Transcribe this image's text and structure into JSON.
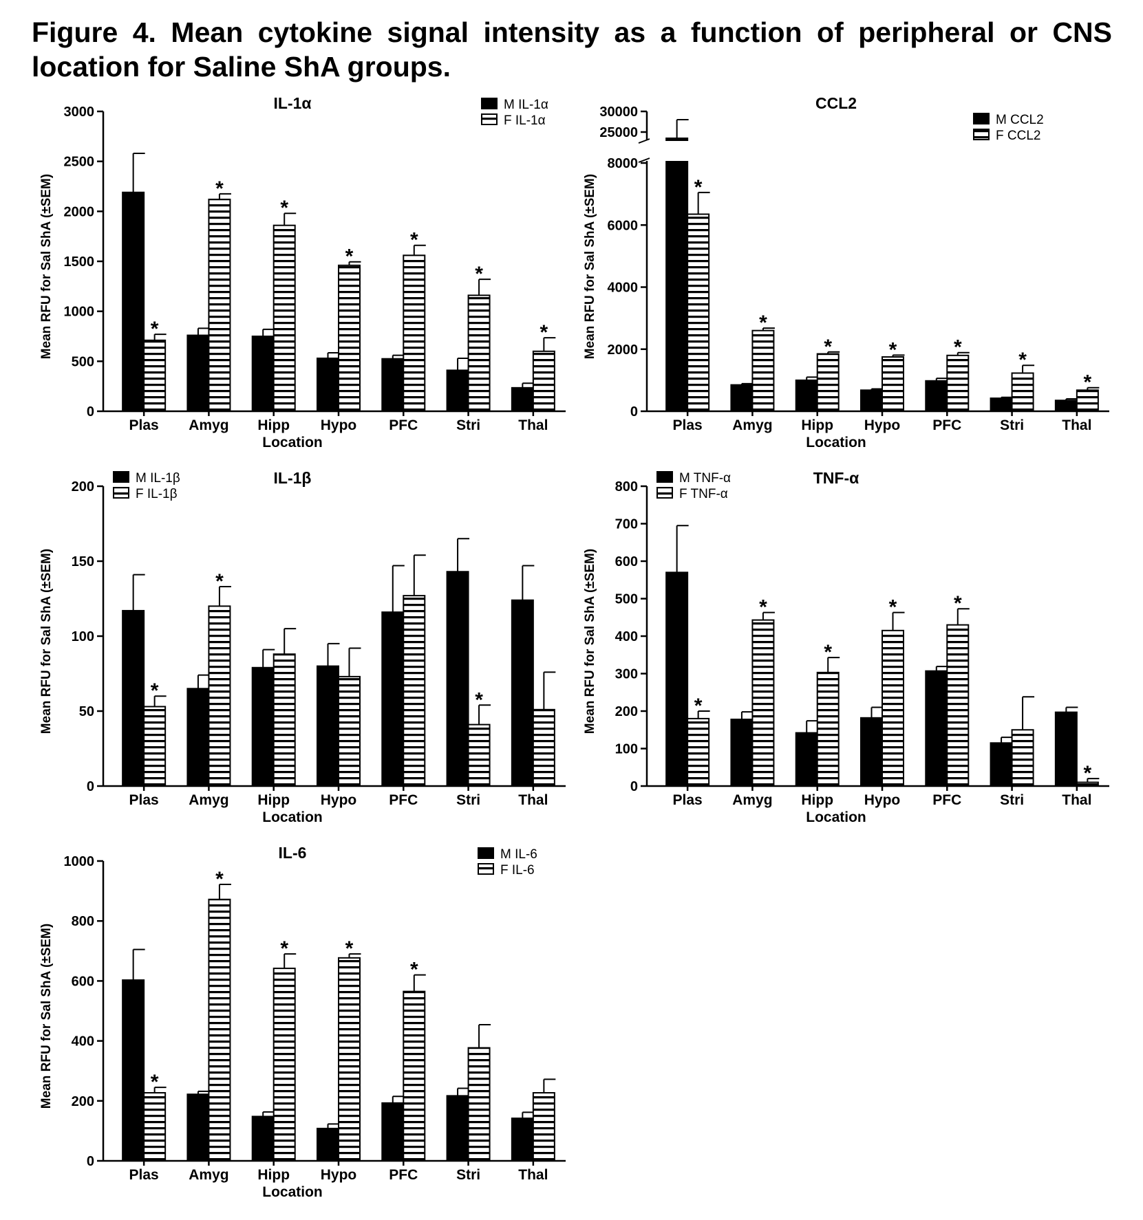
{
  "figure_title_line1": "Figure 4. Mean cytokine signal intensity as a function of peripheral or CNS",
  "figure_title_line2": "location for Saline ShA groups.",
  "chart_data": [
    {
      "type": "bar",
      "title": "IL-1α",
      "xlabel": "Location",
      "ylabel": "Mean RFU for Sal ShA (±SEM)",
      "ylim": [
        0,
        3000
      ],
      "yticks": [
        0,
        500,
        1000,
        1500,
        2000,
        2500,
        3000
      ],
      "categories": [
        "Plas",
        "Amyg",
        "Hipp",
        "Hypo",
        "PFC",
        "Stri",
        "Thal"
      ],
      "legend_position": "top-right",
      "series": [
        {
          "name": "M IL-1α",
          "fill": "solid",
          "values": [
            2190,
            760,
            750,
            530,
            525,
            410,
            235
          ],
          "sem": [
            390,
            70,
            70,
            55,
            35,
            120,
            45
          ]
        },
        {
          "name": "F IL-1α",
          "fill": "striped",
          "values": [
            710,
            2120,
            1860,
            1460,
            1560,
            1160,
            600
          ],
          "sem": [
            60,
            55,
            120,
            35,
            100,
            160,
            135
          ]
        }
      ],
      "significant": [
        [],
        [
          0,
          1,
          2,
          3,
          4,
          5,
          6
        ]
      ]
    },
    {
      "type": "bar",
      "title": "CCL2",
      "xlabel": "Location",
      "ylabel": "Mean RFU for Sal ShA (±SEM)",
      "ylim": [
        0,
        30000
      ],
      "yticks": [
        0,
        2000,
        4000,
        6000,
        8000,
        25000,
        30000
      ],
      "axis_break": [
        8000,
        25000
      ],
      "categories": [
        "Plas",
        "Amyg",
        "Hipp",
        "Hypo",
        "PFC",
        "Stri",
        "Thal"
      ],
      "legend_position": "top-right",
      "series": [
        {
          "name": "M CCL2",
          "fill": "solid",
          "values": [
            23500,
            850,
            1000,
            680,
            980,
            420,
            350
          ],
          "sem": [
            4500,
            40,
            100,
            40,
            80,
            30,
            50
          ]
        },
        {
          "name": "F CCL2",
          "fill": "striped",
          "values": [
            6350,
            2600,
            1850,
            1750,
            1800,
            1230,
            680
          ],
          "sem": [
            700,
            80,
            60,
            60,
            90,
            250,
            80
          ]
        }
      ],
      "significant": [
        [],
        [
          0,
          1,
          2,
          3,
          4,
          5,
          6
        ]
      ]
    },
    {
      "type": "bar",
      "title": "IL-1β",
      "xlabel": "Location",
      "ylabel": "Mean RFU for Sal ShA (±SEM)",
      "ylim": [
        0,
        200
      ],
      "yticks": [
        0,
        50,
        100,
        150,
        200
      ],
      "categories": [
        "Plas",
        "Amyg",
        "Hipp",
        "Hypo",
        "PFC",
        "Stri",
        "Thal"
      ],
      "legend_position": "top-left",
      "series": [
        {
          "name": "M IL-1β",
          "fill": "solid",
          "values": [
            117,
            65,
            79,
            80,
            116,
            143,
            124
          ],
          "sem": [
            24,
            9,
            12,
            15,
            31,
            22,
            23
          ]
        },
        {
          "name": "F IL-1β",
          "fill": "striped",
          "values": [
            53,
            120,
            88,
            73,
            127,
            41,
            51
          ],
          "sem": [
            7,
            13,
            17,
            19,
            27,
            13,
            25
          ]
        }
      ],
      "significant": [
        [],
        [
          0,
          1,
          5
        ]
      ]
    },
    {
      "type": "bar",
      "title": "TNF-α",
      "xlabel": "Location",
      "ylabel": "Mean RFU for Sal ShA (±SEM)",
      "ylim": [
        0,
        800
      ],
      "yticks": [
        0,
        100,
        200,
        300,
        400,
        500,
        600,
        700,
        800
      ],
      "categories": [
        "Plas",
        "Amyg",
        "Hipp",
        "Hypo",
        "PFC",
        "Stri",
        "Thal"
      ],
      "legend_position": "top-left",
      "series": [
        {
          "name": "M TNF-α",
          "fill": "solid",
          "values": [
            570,
            178,
            142,
            182,
            307,
            115,
            197
          ],
          "sem": [
            125,
            20,
            32,
            28,
            12,
            15,
            13
          ]
        },
        {
          "name": "F TNF-α",
          "fill": "striped",
          "values": [
            180,
            443,
            303,
            415,
            430,
            150,
            10
          ],
          "sem": [
            20,
            20,
            40,
            48,
            43,
            88,
            10
          ]
        }
      ],
      "significant": [
        [],
        [
          0,
          1,
          2,
          3,
          4,
          6
        ]
      ]
    },
    {
      "type": "bar",
      "title": "IL-6",
      "xlabel": "Location",
      "ylabel": "Mean RFU for Sal ShA (±SEM)",
      "ylim": [
        0,
        1000
      ],
      "yticks": [
        0,
        200,
        400,
        600,
        800,
        1000
      ],
      "categories": [
        "Plas",
        "Amyg",
        "Hipp",
        "Hypo",
        "PFC",
        "Stri",
        "Thal"
      ],
      "legend_position": "top-right",
      "series": [
        {
          "name": "M IL-6",
          "fill": "solid",
          "values": [
            603,
            222,
            148,
            108,
            193,
            217,
            142
          ],
          "sem": [
            102,
            10,
            15,
            15,
            22,
            25,
            20
          ]
        },
        {
          "name": "F IL-6",
          "fill": "striped",
          "values": [
            227,
            872,
            642,
            677,
            565,
            377,
            227
          ],
          "sem": [
            18,
            50,
            48,
            13,
            55,
            77,
            45
          ]
        }
      ],
      "significant": [
        [],
        [
          0,
          1,
          2,
          3,
          4
        ]
      ]
    }
  ]
}
